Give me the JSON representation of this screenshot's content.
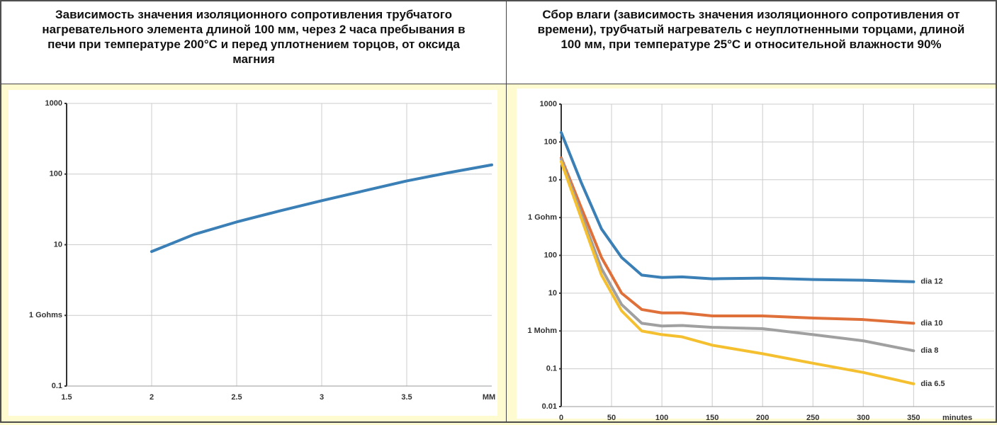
{
  "chart_data": [
    {
      "type": "line",
      "title": "Зависимость значения изоляционного сопротивления трубчатого нагревательного элемента длиной 100 мм, через 2 часа пребывания в печи при температуре 200°C и перед уплотнением торцов, от оксида магния",
      "xlabel": "MM",
      "x": [
        2,
        2.25,
        2.5,
        2.75,
        3,
        3.25,
        3.5,
        3.75,
        4
      ],
      "values": [
        8,
        14,
        21,
        30,
        42,
        58,
        80,
        105,
        135
      ],
      "color": "#3a7fb5",
      "xlim": [
        1.5,
        4
      ],
      "xticks": [
        1.5,
        2,
        2.5,
        3,
        3.5
      ],
      "ylim": [
        0.1,
        1000
      ],
      "yticks": [
        0.1,
        {
          "value": 1,
          "label": "1 Gohms"
        },
        10,
        100,
        1000
      ],
      "log_y": true,
      "grid": true
    },
    {
      "type": "line",
      "title": "Сбор влаги (зависимость значения изоляционного сопротивления от времени), трубчатый нагреватель с неуплотненными торцами, длиной 100 мм, при температуре 25°C и относительной влажности 90%",
      "xlabel": "minutes",
      "x": [
        0,
        20,
        40,
        60,
        80,
        100,
        120,
        150,
        200,
        250,
        300,
        350
      ],
      "series": [
        {
          "name": "dia 12",
          "color": "#3a7fb5",
          "values": [
            178000,
            8300,
            500,
            88,
            30,
            26,
            27,
            24,
            25,
            23,
            22,
            20
          ]
        },
        {
          "name": "dia 10",
          "color": "#e0703a",
          "values": [
            38000,
            1800,
            88,
            10,
            3.7,
            3,
            3,
            2.5,
            2.5,
            2.2,
            2,
            1.6
          ]
        },
        {
          "name": "dia 8",
          "color": "#a0a0a0",
          "values": [
            35000,
            1200,
            45,
            5,
            1.6,
            1.35,
            1.4,
            1.25,
            1.15,
            0.8,
            0.55,
            0.3
          ]
        },
        {
          "name": "dia 6.5",
          "color": "#f5c030",
          "values": [
            30000,
            950,
            30,
            3.4,
            1,
            0.8,
            0.7,
            0.42,
            0.25,
            0.14,
            0.08,
            0.04
          ]
        }
      ],
      "xlim": [
        0,
        430
      ],
      "xticks": [
        0,
        50,
        100,
        150,
        200,
        250,
        300,
        350
      ],
      "ylim": [
        0.01,
        1000000
      ],
      "yticks": [
        0.01,
        0.1,
        {
          "value": 1,
          "label": "1 Mohm"
        },
        10,
        100,
        {
          "value": 1000,
          "label": "1 Gohm"
        },
        {
          "value": 10000,
          "label": "10"
        },
        {
          "value": 100000,
          "label": "100"
        },
        {
          "value": 1000000,
          "label": "1000"
        }
      ],
      "log_y": true,
      "grid": true
    }
  ]
}
